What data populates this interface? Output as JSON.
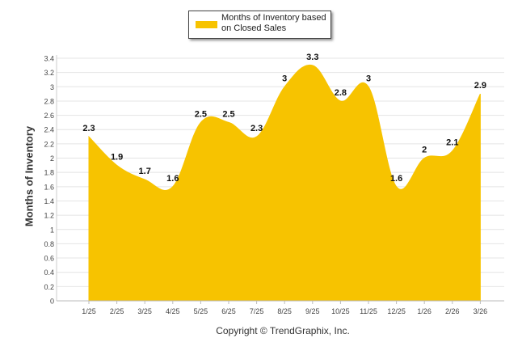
{
  "legend": {
    "label": "Months of Inventory based on Closed Sales"
  },
  "footer": {
    "copyright": "Copyright © TrendGraphix, Inc."
  },
  "colors": {
    "series": "#F7C300",
    "grid": "#E4E4E4",
    "axis_text": "#444444",
    "label_text": "#111111"
  },
  "chart_data": {
    "type": "area",
    "title": "",
    "xlabel": "",
    "ylabel": "Months of Inventory",
    "categories": [
      "1/25",
      "2/25",
      "3/25",
      "4/25",
      "5/25",
      "6/25",
      "7/25",
      "8/25",
      "9/25",
      "10/25",
      "11/25",
      "12/25",
      "1/26",
      "2/26",
      "3/26"
    ],
    "series": [
      {
        "name": "Months of Inventory based on Closed Sales",
        "values": [
          2.3,
          1.9,
          1.7,
          1.6,
          2.5,
          2.5,
          2.3,
          3,
          3.3,
          2.8,
          3,
          1.6,
          2,
          2.1,
          2.9
        ]
      }
    ],
    "data_labels": [
      "2.3",
      "1.9",
      "1.7",
      "1.6",
      "2.5",
      "2.5",
      "2.3",
      "3",
      "3.3",
      "2.8",
      "3",
      "1.6",
      "2",
      "2.1",
      "2.9"
    ],
    "ylim": [
      0,
      3.4
    ],
    "y_ticks": [
      "0",
      "0.2",
      "0.4",
      "0.6",
      "0.8",
      "1",
      "1.2",
      "1.4",
      "1.6",
      "1.8",
      "2",
      "2.2",
      "2.4",
      "2.6",
      "2.8",
      "3",
      "3.2",
      "3.4"
    ],
    "grid": true,
    "legend_position": "top-center"
  }
}
